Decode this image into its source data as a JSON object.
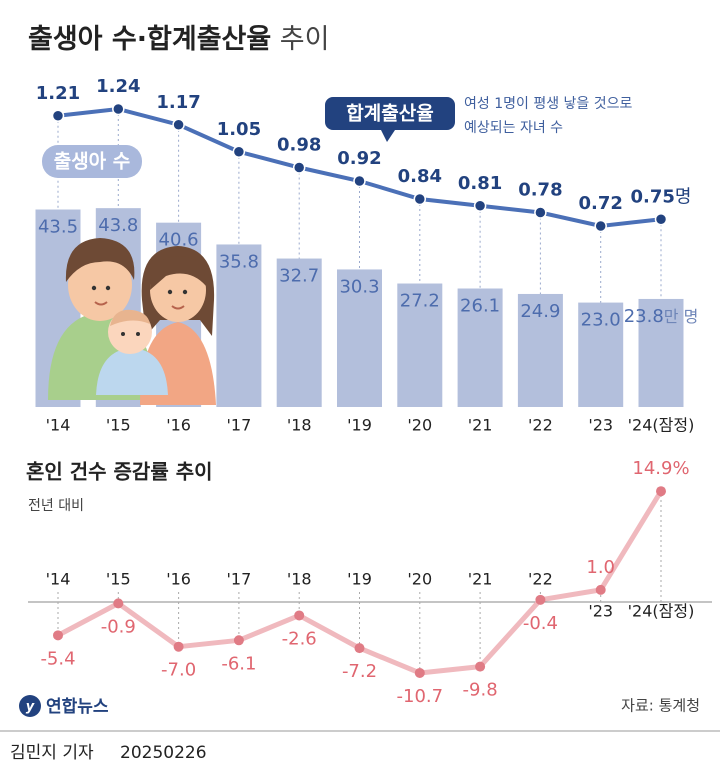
{
  "header": {
    "title": "출생아 수·합계출산율",
    "title_suffix": " 추이"
  },
  "chart_data": [
    {
      "type": "bar-line",
      "categories": [
        "'14",
        "'15",
        "'16",
        "'17",
        "'18",
        "'19",
        "'20",
        "'21",
        "'22",
        "'23",
        "'24(잠정)"
      ],
      "series": [
        {
          "name": "출생아 수",
          "type": "bar",
          "color": "#b3bfdc",
          "values": [
            43.5,
            43.8,
            40.6,
            35.8,
            32.7,
            30.3,
            27.2,
            26.1,
            24.9,
            23.0,
            23.8
          ],
          "value_labels": [
            "43.5",
            "43.8",
            "40.6",
            "35.8",
            "32.7",
            "30.3",
            "27.2",
            "26.1",
            "24.9",
            "23.0",
            "23.8"
          ],
          "unit": "만 명"
        },
        {
          "name": "합계출산율",
          "type": "line",
          "color": "#4b70b7",
          "values": [
            1.21,
            1.24,
            1.17,
            1.05,
            0.98,
            0.92,
            0.84,
            0.81,
            0.78,
            0.72,
            0.75
          ],
          "value_labels": [
            "1.21",
            "1.24",
            "1.17",
            "1.05",
            "0.98",
            "0.92",
            "0.84",
            "0.81",
            "0.78",
            "0.72",
            "0.75"
          ],
          "unit": "명",
          "note": [
            "여성 1명이 평생 낳을 것으로",
            "예상되는 자녀 수"
          ]
        }
      ]
    },
    {
      "type": "line",
      "title": "혼인 건수 증감률 추이",
      "subtitle": "전년 대비",
      "categories": [
        "'14",
        "'15",
        "'16",
        "'17",
        "'18",
        "'19",
        "'20",
        "'21",
        "'22",
        "'23",
        "'24(잠정)"
      ],
      "color": "#f0b9be",
      "values": [
        -5.4,
        -0.9,
        -7.0,
        -6.1,
        -2.6,
        -7.2,
        -10.7,
        -9.8,
        -0.4,
        1.0,
        14.9
      ],
      "value_labels": [
        "-5.4",
        "-0.9",
        "-7.0",
        "-6.1",
        "-2.6",
        "-7.2",
        "-10.7",
        "-9.8",
        "-0.4",
        "1.0",
        "14.9%"
      ]
    }
  ],
  "footer": {
    "logo": "연합뉴스",
    "source": "자료: 통계청",
    "byline": "김민지 기자",
    "date": "20250226"
  }
}
